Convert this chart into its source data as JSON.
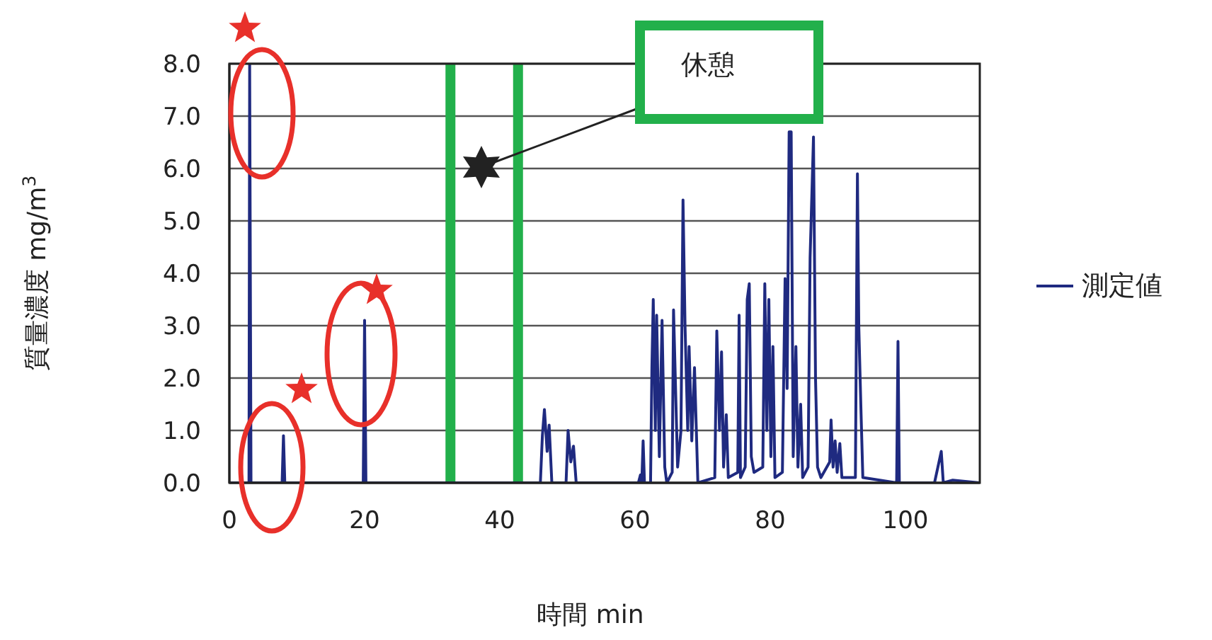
{
  "chart_data": {
    "type": "line",
    "xlabel": "時間 min",
    "ylabel": "質量濃度 mg/m$^{3}$",
    "xlim": [
      0,
      111
    ],
    "xticks": [
      0,
      20,
      40,
      60,
      80,
      100
    ],
    "ylim": [
      0,
      8
    ],
    "yticks": [
      {
        "value": 0,
        "label": "0.0"
      },
      {
        "value": 1,
        "label": "1.0"
      },
      {
        "value": 2,
        "label": "2.0"
      },
      {
        "value": 3,
        "label": "3.0"
      },
      {
        "value": 4,
        "label": "4.0"
      },
      {
        "value": 5,
        "label": "5.0"
      },
      {
        "value": 6,
        "label": "6.0"
      },
      {
        "value": 7,
        "label": "7.0"
      },
      {
        "value": 8,
        "label": "8.0"
      }
    ],
    "grid": "y",
    "legend": "right",
    "marker": "none",
    "line_style": "solid",
    "ref_lines": [
      {
        "axis": "x",
        "value": 32.7,
        "color": "#22b04b"
      },
      {
        "axis": "x",
        "value": 42.7,
        "color": "#22b04b"
      }
    ],
    "annotations": [
      "休憩"
    ],
    "series": [
      {
        "name": "測定値",
        "color": "#1f2a80",
        "x": [
          0,
          2.9,
          3.0,
          3.2,
          7.8,
          8.0,
          8.2,
          19.8,
          20.0,
          20.2,
          46.0,
          46.3,
          46.6,
          47.0,
          47.3,
          47.7,
          49.8,
          50.1,
          50.5,
          50.9,
          51.3,
          60.5,
          60.8,
          61.0,
          61.2,
          61.4,
          62.3,
          62.5,
          62.7,
          63.0,
          63.2,
          63.6,
          64.0,
          64.4,
          64.7,
          65.5,
          65.7,
          66.0,
          66.3,
          66.8,
          67.1,
          67.4,
          67.8,
          68.0,
          68.4,
          68.8,
          69.3,
          71.8,
          72.1,
          72.5,
          72.8,
          73.1,
          73.5,
          73.8,
          75.2,
          75.4,
          75.6,
          76.3,
          76.6,
          76.9,
          77.2,
          77.6,
          78.9,
          79.2,
          79.5,
          79.8,
          80.1,
          80.4,
          80.7,
          81.8,
          82.2,
          82.5,
          82.8,
          83.1,
          83.4,
          83.8,
          84.1,
          84.5,
          84.8,
          85.6,
          85.9,
          86.4,
          86.7,
          87.0,
          87.5,
          88.8,
          89.0,
          89.3,
          89.6,
          89.9,
          90.3,
          90.6,
          92.6,
          92.9,
          93.1,
          93.4,
          93.7,
          98.7,
          98.9,
          99.1,
          104.3,
          104.8,
          105.3,
          105.6,
          107,
          111
        ],
        "values": [
          0,
          0,
          8.0,
          0,
          0,
          0.9,
          0,
          0,
          3.1,
          0,
          0,
          0.9,
          1.4,
          0.6,
          1.1,
          0,
          0,
          1.0,
          0.4,
          0.7,
          0,
          0,
          0.15,
          0,
          0.8,
          0,
          0,
          2.2,
          3.5,
          1.0,
          3.2,
          0.5,
          3.1,
          0.3,
          0,
          0.2,
          3.3,
          1.8,
          0.3,
          1.0,
          5.4,
          3.0,
          1.0,
          2.6,
          0.8,
          2.2,
          0,
          0.1,
          2.9,
          1.0,
          2.5,
          0.3,
          1.3,
          0.1,
          0.2,
          3.2,
          0.1,
          0.3,
          3.5,
          3.8,
          0.5,
          0.2,
          0.3,
          3.8,
          1.0,
          3.5,
          0.5,
          2.6,
          0.1,
          0.2,
          3.9,
          1.8,
          6.7,
          6.7,
          0.5,
          2.6,
          0.3,
          1.5,
          0.1,
          0.3,
          4.3,
          6.6,
          2.0,
          0.3,
          0.1,
          0.4,
          1.2,
          0.3,
          0.8,
          0.2,
          0.75,
          0.1,
          0.1,
          5.9,
          3.0,
          1.5,
          0.1,
          0,
          2.7,
          0,
          0,
          0.3,
          0.6,
          0,
          0.05,
          0
        ]
      }
    ]
  }
}
